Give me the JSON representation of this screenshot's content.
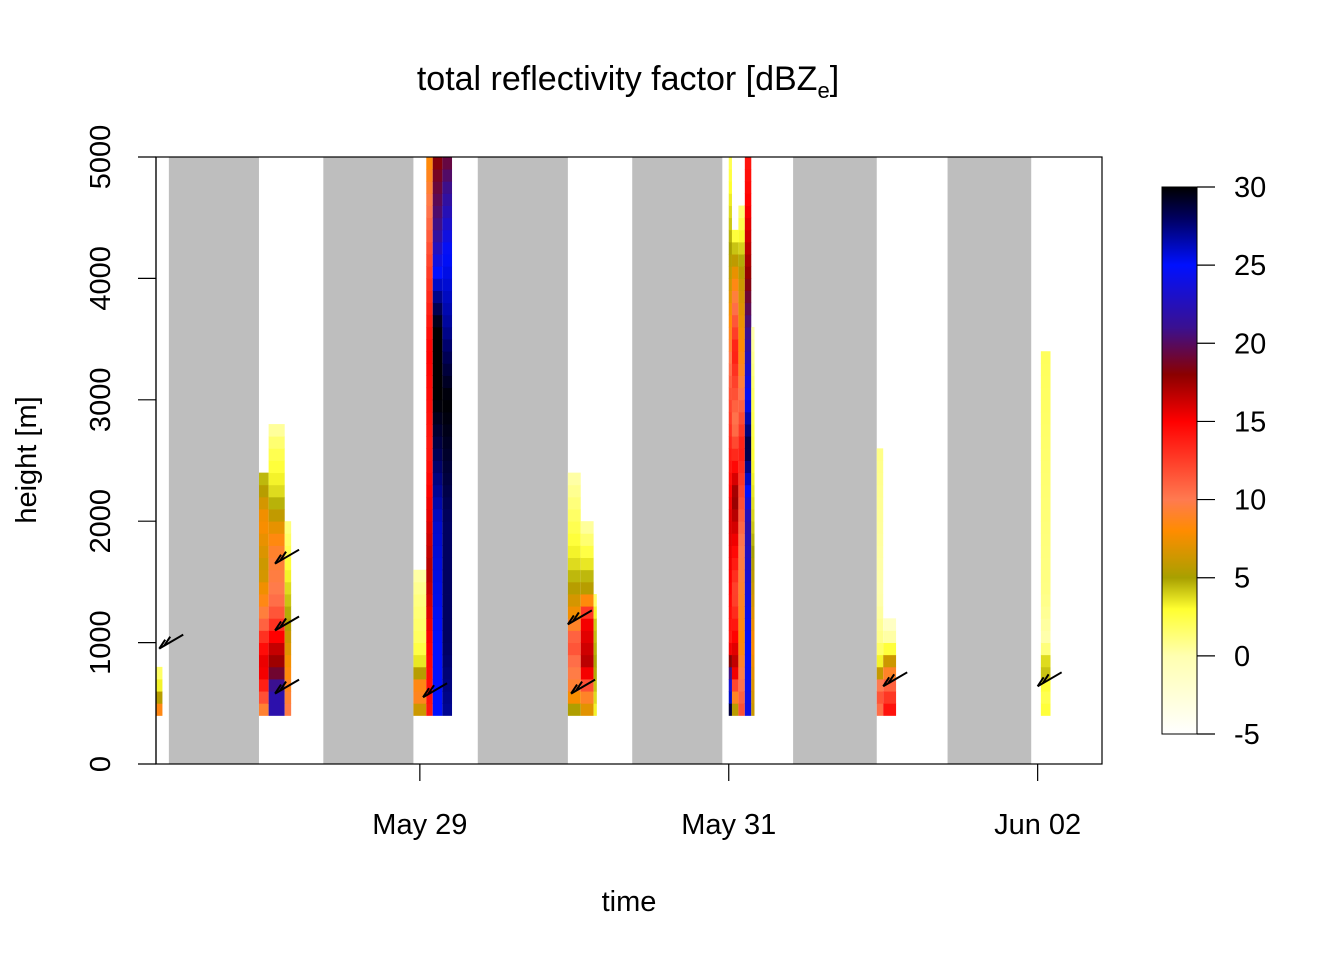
{
  "chart_data": {
    "type": "heatmap",
    "title": {
      "main": "total reflectivity factor [dBZ",
      "subscript": "e",
      "close": "]"
    },
    "xlabel": "time",
    "ylabel": "height [m]",
    "xlim": [
      "2016-05-27T07:00",
      "2016-06-02T10:00"
    ],
    "ylim": [
      0,
      5000
    ],
    "x_ticks": [
      {
        "time": "2016-05-29T00:00",
        "label": "May 29"
      },
      {
        "time": "2016-05-31T00:00",
        "label": "May 31"
      },
      {
        "time": "2016-06-02T00:00",
        "label": "Jun 02"
      }
    ],
    "y_ticks": [
      0,
      1000,
      2000,
      3000,
      4000,
      5000
    ],
    "night_shading": {
      "color": "#bebebe",
      "periods": [
        [
          "2016-05-27T09:00",
          "2016-05-27T23:00"
        ],
        [
          "2016-05-28T09:00",
          "2016-05-28T23:00"
        ],
        [
          "2016-05-29T09:00",
          "2016-05-29T23:00"
        ],
        [
          "2016-05-30T09:00",
          "2016-05-30T23:00"
        ],
        [
          "2016-05-31T10:00",
          "2016-05-31T23:00"
        ],
        [
          "2016-06-01T10:00",
          "2016-06-01T23:00"
        ]
      ]
    },
    "colorbar": {
      "range": [
        -5,
        30
      ],
      "ticks": [
        -5,
        0,
        5,
        10,
        15,
        20,
        25,
        30
      ],
      "colors": [
        {
          "v": -5,
          "c": "#ffffff"
        },
        {
          "v": 0,
          "c": "#ffffb0"
        },
        {
          "v": 3,
          "c": "#ffff30"
        },
        {
          "v": 5,
          "c": "#a8a000"
        },
        {
          "v": 8,
          "c": "#ff8c00"
        },
        {
          "v": 10,
          "c": "#ff7a50"
        },
        {
          "v": 15,
          "c": "#ff0000"
        },
        {
          "v": 18,
          "c": "#8b0000"
        },
        {
          "v": 21,
          "c": "#3a1090"
        },
        {
          "v": 25,
          "c": "#0010ff"
        },
        {
          "v": 28,
          "c": "#000060"
        },
        {
          "v": 30,
          "c": "#000000"
        }
      ]
    },
    "echo_columns": [
      {
        "start": "2016-05-27T07:00",
        "end": "2016-05-27T08:00",
        "profile": [
          [
            400,
            10
          ],
          [
            600,
            4
          ],
          [
            800,
            1
          ]
        ]
      },
      {
        "start": "2016-05-27T23:00",
        "end": "2016-05-28T00:30",
        "profile": [
          [
            400,
            8
          ],
          [
            600,
            13
          ],
          [
            800,
            16
          ],
          [
            1000,
            14
          ],
          [
            1200,
            10
          ],
          [
            1600,
            6
          ],
          [
            2000,
            8
          ],
          [
            2400,
            4
          ]
        ]
      },
      {
        "start": "2016-05-28T00:30",
        "end": "2016-05-28T03:00",
        "profile": [
          [
            400,
            22
          ],
          [
            600,
            22
          ],
          [
            800,
            18
          ],
          [
            1000,
            16
          ],
          [
            1200,
            12
          ],
          [
            1400,
            10
          ],
          [
            1800,
            9
          ],
          [
            2200,
            4
          ],
          [
            2600,
            2
          ],
          [
            2800,
            0
          ]
        ]
      },
      {
        "start": "2016-05-28T03:00",
        "end": "2016-05-28T04:00",
        "profile": [
          [
            400,
            10
          ],
          [
            800,
            8
          ],
          [
            1200,
            5
          ],
          [
            1600,
            3
          ],
          [
            2000,
            1
          ]
        ]
      },
      {
        "start": "2016-05-28T23:00",
        "end": "2016-05-29T01:00",
        "profile": [
          [
            400,
            5
          ],
          [
            600,
            10
          ],
          [
            800,
            4
          ],
          [
            1000,
            2
          ],
          [
            1400,
            1
          ],
          [
            1600,
            0
          ]
        ]
      },
      {
        "start": "2016-05-29T01:00",
        "end": "2016-05-29T02:00",
        "profile": [
          [
            400,
            14
          ],
          [
            1000,
            15
          ],
          [
            1600,
            17
          ],
          [
            2600,
            14
          ],
          [
            3400,
            15
          ],
          [
            4200,
            12
          ],
          [
            5000,
            8
          ]
        ]
      },
      {
        "start": "2016-05-29T02:00",
        "end": "2016-05-29T03:30",
        "profile": [
          [
            400,
            25
          ],
          [
            1000,
            25
          ],
          [
            2000,
            26
          ],
          [
            3000,
            30
          ],
          [
            3600,
            30
          ],
          [
            4400,
            21
          ],
          [
            5000,
            18
          ]
        ]
      },
      {
        "start": "2016-05-29T03:30",
        "end": "2016-05-29T05:00",
        "profile": [
          [
            400,
            27
          ],
          [
            1000,
            28
          ],
          [
            2000,
            28
          ],
          [
            3000,
            30
          ],
          [
            3600,
            27
          ],
          [
            4200,
            25
          ],
          [
            5000,
            19
          ]
        ]
      },
      {
        "start": "2016-05-29T23:00",
        "end": "2016-05-30T01:00",
        "profile": [
          [
            400,
            4
          ],
          [
            600,
            9
          ],
          [
            800,
            10
          ],
          [
            1000,
            12
          ],
          [
            1200,
            8
          ],
          [
            1600,
            4
          ],
          [
            2000,
            2
          ],
          [
            2400,
            0
          ]
        ]
      },
      {
        "start": "2016-05-30T01:00",
        "end": "2016-05-30T03:00",
        "profile": [
          [
            400,
            6
          ],
          [
            600,
            10
          ],
          [
            800,
            17
          ],
          [
            1000,
            16
          ],
          [
            1200,
            15
          ],
          [
            1400,
            6
          ],
          [
            1800,
            2
          ],
          [
            2000,
            0
          ]
        ]
      },
      {
        "start": "2016-05-30T03:00",
        "end": "2016-05-30T03:30",
        "profile": [
          [
            400,
            3
          ],
          [
            800,
            5
          ],
          [
            1200,
            4
          ],
          [
            1400,
            1
          ]
        ]
      },
      {
        "start": "2016-05-31T00:00",
        "end": "2016-05-31T00:30",
        "profile": [
          [
            400,
            30
          ],
          [
            1000,
            14
          ],
          [
            2000,
            16
          ],
          [
            3000,
            12
          ],
          [
            4000,
            6
          ],
          [
            5000,
            2
          ]
        ]
      },
      {
        "start": "2016-05-31T00:30",
        "end": "2016-05-31T01:30",
        "profile": [
          [
            400,
            4
          ],
          [
            800,
            17
          ],
          [
            1400,
            12
          ],
          [
            2200,
            18
          ],
          [
            2800,
            10
          ],
          [
            3400,
            14
          ],
          [
            4000,
            8
          ],
          [
            4400,
            2
          ]
        ]
      },
      {
        "start": "2016-05-31T01:30",
        "end": "2016-05-31T02:30",
        "profile": [
          [
            400,
            12
          ],
          [
            1000,
            8
          ],
          [
            1800,
            10
          ],
          [
            2600,
            14
          ],
          [
            3200,
            9
          ],
          [
            4000,
            6
          ],
          [
            4600,
            1
          ]
        ]
      },
      {
        "start": "2016-05-31T02:30",
        "end": "2016-05-31T03:30",
        "profile": [
          [
            400,
            24
          ],
          [
            1000,
            25
          ],
          [
            2000,
            22
          ],
          [
            2600,
            29
          ],
          [
            3000,
            25
          ],
          [
            4000,
            18
          ],
          [
            4600,
            15
          ],
          [
            5000,
            14
          ]
        ]
      },
      {
        "start": "2016-05-31T03:30",
        "end": "2016-05-31T04:00",
        "profile": [
          [
            400,
            6
          ],
          [
            1000,
            8
          ],
          [
            2000,
            4
          ],
          [
            3000,
            2
          ],
          [
            3600,
            0
          ]
        ]
      },
      {
        "start": "2016-05-31T23:00",
        "end": "2016-06-01T00:00",
        "profile": [
          [
            400,
            10
          ],
          [
            600,
            12
          ],
          [
            800,
            4
          ],
          [
            1000,
            1
          ],
          [
            1400,
            0
          ],
          [
            2600,
            1
          ]
        ]
      },
      {
        "start": "2016-06-01T00:00",
        "end": "2016-06-01T02:00",
        "profile": [
          [
            400,
            15
          ],
          [
            600,
            12
          ],
          [
            800,
            8
          ],
          [
            1000,
            1
          ],
          [
            1200,
            -2
          ]
        ]
      },
      {
        "start": "2016-06-02T00:30",
        "end": "2016-06-02T02:00",
        "profile": [
          [
            400,
            3
          ],
          [
            600,
            2
          ],
          [
            800,
            5
          ],
          [
            1000,
            0
          ],
          [
            1400,
            1
          ],
          [
            3400,
            2
          ]
        ]
      }
    ],
    "wind_barbs": [
      {
        "time": "2016-05-27T07:30",
        "height": 950
      },
      {
        "time": "2016-05-28T01:30",
        "height": 1650
      },
      {
        "time": "2016-05-28T01:30",
        "height": 1100
      },
      {
        "time": "2016-05-28T01:30",
        "height": 580
      },
      {
        "time": "2016-05-29T00:30",
        "height": 550
      },
      {
        "time": "2016-05-29T23:00",
        "height": 1150
      },
      {
        "time": "2016-05-29T23:30",
        "height": 580
      },
      {
        "time": "2016-06-01T00:00",
        "height": 640
      },
      {
        "time": "2016-06-02T00:00",
        "height": 640
      }
    ]
  }
}
